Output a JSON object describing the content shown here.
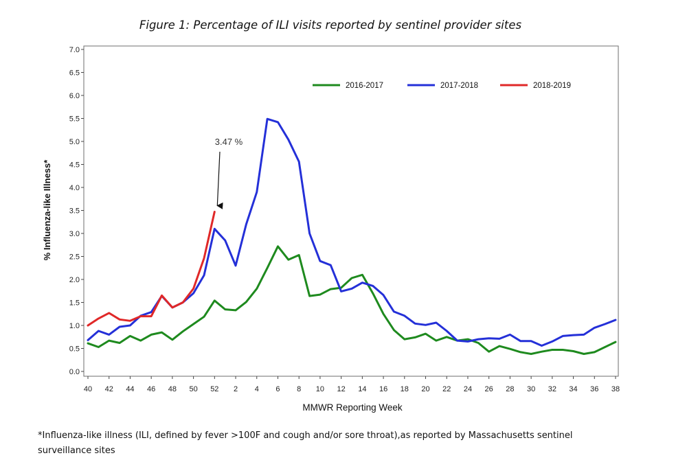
{
  "chart_data": {
    "type": "line",
    "title": "Figure 1: Percentage of ILI visits reported by sentinel provider sites",
    "xlabel": "MMWR Reporting Week",
    "ylabel": "% Influenza-like Illness*",
    "ylim": [
      0.0,
      7.0
    ],
    "yticks": [
      "0.0",
      "0.5",
      "1.0",
      "1.5",
      "2.0",
      "2.5",
      "3.0",
      "3.5",
      "4.0",
      "4.5",
      "5.0",
      "5.5",
      "6.0",
      "6.5",
      "7.0"
    ],
    "xtick_labels": [
      "40",
      "42",
      "44",
      "46",
      "48",
      "50",
      "52",
      "2",
      "4",
      "6",
      "8",
      "10",
      "12",
      "14",
      "16",
      "18",
      "20",
      "22",
      "24",
      "26",
      "28",
      "30",
      "32",
      "34",
      "36",
      "38"
    ],
    "weeks": [
      40,
      41,
      42,
      43,
      44,
      45,
      46,
      47,
      48,
      49,
      50,
      51,
      52,
      1,
      2,
      3,
      4,
      5,
      6,
      7,
      8,
      9,
      10,
      11,
      12,
      13,
      14,
      15,
      16,
      17,
      18,
      19,
      20,
      21,
      22,
      23,
      24,
      25,
      26,
      27,
      28,
      29,
      30,
      31,
      32,
      33,
      34,
      35,
      36,
      37,
      38
    ],
    "legend_position": "top-right",
    "series": [
      {
        "name": "2016-2017",
        "color": "#1e8a1e",
        "values": [
          0.61,
          0.53,
          0.67,
          0.62,
          0.77,
          0.67,
          0.8,
          0.85,
          0.69,
          0.87,
          1.03,
          1.19,
          1.54,
          1.35,
          1.33,
          1.51,
          1.8,
          2.25,
          2.72,
          2.43,
          2.53,
          1.64,
          1.67,
          1.79,
          1.82,
          2.03,
          2.1,
          1.7,
          1.25,
          0.9,
          0.7,
          0.74,
          0.82,
          0.67,
          0.75,
          0.67,
          0.7,
          0.62,
          0.43,
          0.55,
          0.49,
          0.42,
          0.38,
          0.43,
          0.47,
          0.47,
          0.44,
          0.38,
          0.42,
          0.53,
          0.64
        ]
      },
      {
        "name": "2017-2018",
        "color": "#2430d8",
        "values": [
          0.68,
          0.88,
          0.8,
          0.97,
          1.0,
          1.21,
          1.29,
          1.64,
          1.39,
          1.5,
          1.7,
          2.09,
          3.1,
          2.85,
          2.3,
          3.2,
          3.9,
          5.49,
          5.42,
          5.04,
          4.56,
          3.0,
          2.4,
          2.31,
          1.74,
          1.8,
          1.93,
          1.86,
          1.66,
          1.3,
          1.21,
          1.04,
          1.01,
          1.06,
          0.88,
          0.67,
          0.65,
          0.7,
          0.72,
          0.71,
          0.8,
          0.66,
          0.66,
          0.56,
          0.65,
          0.77,
          0.79,
          0.8,
          0.95,
          1.03,
          1.12
        ]
      },
      {
        "name": "2018-2019",
        "color": "#e02828",
        "values": [
          1.0,
          1.15,
          1.27,
          1.13,
          1.1,
          1.2,
          1.2,
          1.65,
          1.39,
          1.5,
          1.8,
          2.46,
          3.47
        ]
      }
    ],
    "annotation": {
      "text": "3.47 %",
      "week_index": 12,
      "value": 3.47
    }
  },
  "footnote": {
    "line1": "*Influenza-like illness (ILI, defined by fever >100F and cough and/or sore throat),as reported by Massachusetts sentinel",
    "line2": "surveillance sites"
  }
}
